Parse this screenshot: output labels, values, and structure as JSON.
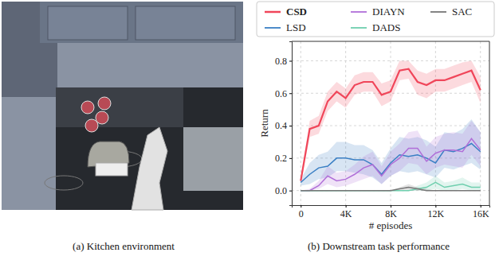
{
  "chart_data": {
    "type": "line",
    "x_label": "# episodes",
    "y_label": "Return",
    "x": [
      0,
      800,
      1600,
      2400,
      3200,
      4000,
      4800,
      5600,
      6400,
      7200,
      8000,
      8800,
      9600,
      10400,
      11200,
      12000,
      12800,
      13600,
      14400,
      15200,
      16000
    ],
    "xlim": [
      -800,
      16800
    ],
    "xticks": [
      0,
      {
        "value": 4000,
        "label": "4K"
      },
      {
        "value": 8000,
        "label": "8K"
      },
      {
        "value": 12000,
        "label": "12K"
      },
      {
        "value": 16000,
        "label": "16K"
      }
    ],
    "ylim": [
      -0.09,
      0.92
    ],
    "yticks": [
      {
        "value": 0,
        "label": "0.0"
      },
      0.2,
      0.4,
      0.6,
      0.8
    ],
    "grid": true,
    "legend": "top",
    "series": [
      {
        "name": "CSD",
        "color": "#f0465a",
        "values": [
          0.06,
          0.38,
          0.4,
          0.55,
          0.61,
          0.57,
          0.65,
          0.67,
          0.67,
          0.59,
          0.61,
          0.74,
          0.75,
          0.67,
          0.65,
          0.68,
          0.68,
          0.7,
          0.72,
          0.74,
          0.62
        ],
        "lower": [
          0.04,
          0.33,
          0.35,
          0.49,
          0.55,
          0.51,
          0.59,
          0.61,
          0.61,
          0.52,
          0.55,
          0.68,
          0.69,
          0.59,
          0.57,
          0.61,
          0.61,
          0.63,
          0.65,
          0.67,
          0.54
        ],
        "upper": [
          0.08,
          0.43,
          0.46,
          0.61,
          0.67,
          0.63,
          0.71,
          0.73,
          0.73,
          0.66,
          0.68,
          0.8,
          0.8,
          0.74,
          0.72,
          0.75,
          0.75,
          0.77,
          0.79,
          0.8,
          0.7
        ]
      },
      {
        "name": "LSD",
        "color": "#3a7fc4",
        "values": [
          0.05,
          0.1,
          0.14,
          0.15,
          0.2,
          0.2,
          0.19,
          0.19,
          0.16,
          0.1,
          0.17,
          0.22,
          0.21,
          0.22,
          0.2,
          0.17,
          0.25,
          0.24,
          0.26,
          0.29,
          0.24
        ],
        "lower": [
          0.03,
          0.04,
          0.07,
          0.08,
          0.12,
          0.12,
          0.11,
          0.1,
          0.08,
          0.04,
          0.09,
          0.12,
          0.11,
          0.12,
          0.1,
          0.08,
          0.14,
          0.13,
          0.15,
          0.17,
          0.13
        ],
        "upper": [
          0.07,
          0.17,
          0.22,
          0.24,
          0.3,
          0.3,
          0.28,
          0.28,
          0.25,
          0.17,
          0.26,
          0.33,
          0.32,
          0.33,
          0.31,
          0.27,
          0.36,
          0.35,
          0.38,
          0.44,
          0.36
        ]
      },
      {
        "name": "DIAYN",
        "color": "#b06fd8",
        "values": [
          0.0,
          0.0,
          0.03,
          0.09,
          0.06,
          0.07,
          0.1,
          0.14,
          0.16,
          0.09,
          0.16,
          0.2,
          0.26,
          0.26,
          0.18,
          0.23,
          0.25,
          0.25,
          0.24,
          0.32,
          0.25
        ],
        "lower": [
          0.0,
          0.0,
          0.01,
          0.04,
          0.02,
          0.03,
          0.05,
          0.07,
          0.09,
          0.04,
          0.09,
          0.12,
          0.17,
          0.16,
          0.1,
          0.14,
          0.16,
          0.15,
          0.14,
          0.22,
          0.15
        ],
        "upper": [
          0.0,
          0.01,
          0.06,
          0.15,
          0.11,
          0.12,
          0.16,
          0.21,
          0.24,
          0.15,
          0.24,
          0.29,
          0.36,
          0.37,
          0.27,
          0.33,
          0.35,
          0.36,
          0.35,
          0.43,
          0.36
        ]
      },
      {
        "name": "DADS",
        "color": "#6fcfae",
        "values": [
          0,
          0,
          0,
          0,
          0,
          0,
          0,
          0,
          0,
          0,
          0,
          0,
          0,
          0.01,
          0.02,
          0.05,
          0.02,
          0.03,
          0.04,
          0.02,
          0.02
        ],
        "lower": [
          0,
          0,
          0,
          0,
          0,
          0,
          0,
          0,
          0,
          0,
          0,
          0,
          0,
          0,
          0,
          0.01,
          0,
          0,
          0.01,
          0,
          0
        ],
        "upper": [
          0,
          0,
          0,
          0,
          0,
          0,
          0,
          0,
          0,
          0,
          0,
          0,
          0,
          0.03,
          0.05,
          0.09,
          0.05,
          0.06,
          0.08,
          0.05,
          0.05
        ]
      },
      {
        "name": "SAC",
        "color": "#777777",
        "values": [
          0,
          0,
          0,
          0,
          0,
          0,
          0,
          0,
          0,
          0,
          0,
          0.01,
          0.02,
          0.01,
          0,
          0,
          0,
          0,
          0,
          0,
          0
        ],
        "lower": [
          0,
          0,
          0,
          0,
          0,
          0,
          0,
          0,
          0,
          0,
          0,
          0,
          0,
          0,
          0,
          0,
          0,
          0,
          0,
          0,
          0
        ],
        "upper": [
          0,
          0,
          0,
          0,
          0,
          0,
          0,
          0,
          0,
          0,
          0,
          0.02,
          0.04,
          0.02,
          0.01,
          0,
          0,
          0,
          0,
          0,
          0
        ]
      }
    ]
  },
  "captions": [
    "(a) Kitchen environment",
    "(b) Downstream task performance"
  ]
}
